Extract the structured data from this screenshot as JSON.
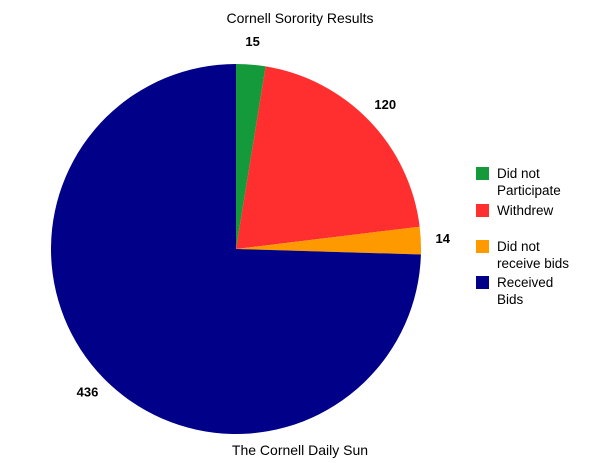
{
  "chart_data": {
    "type": "pie",
    "title": "Cornell Sorority Results",
    "caption": "The Cornell Daily Sun",
    "start": "top",
    "direction": "clockwise",
    "slices": [
      {
        "name": "Did not Participate",
        "legend_label": "Did not\nParticipate",
        "value": 15,
        "label": "15",
        "color": "#149a3a"
      },
      {
        "name": "Withdrew",
        "legend_label": "Withdrew",
        "value": 120,
        "label": "120",
        "color": "#ff2f2f"
      },
      {
        "name": "Did not receive bids",
        "legend_label": "Did not\nreceive bids",
        "value": 14,
        "label": "14",
        "color": "#ff9900"
      },
      {
        "name": "Received Bids",
        "legend_label": "Received\nBids",
        "value": 436,
        "label": "436",
        "color": "#000088"
      }
    ],
    "legend_position": "right"
  }
}
